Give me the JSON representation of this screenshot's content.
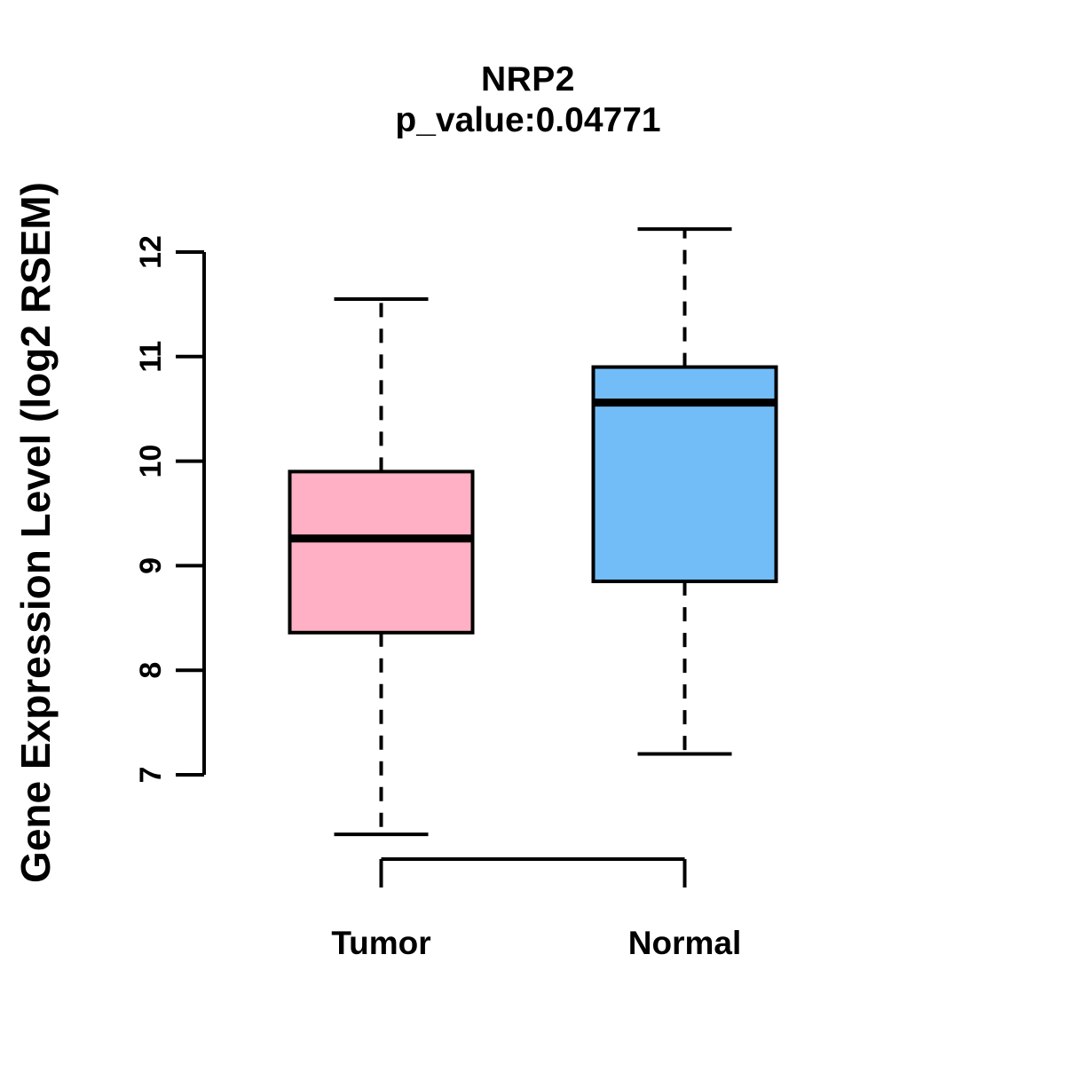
{
  "chart_data": {
    "type": "boxplot",
    "title": "NRP2",
    "subtitle": "p_value:0.04771",
    "ylabel": "Gene Expression Level (log2 RSEM)",
    "xlabel": "",
    "yticks": [
      7,
      8,
      9,
      10,
      11,
      12
    ],
    "axis_range": [
      7,
      12
    ],
    "categories": [
      "Tumor",
      "Normal"
    ],
    "series": [
      {
        "name": "Tumor",
        "color": "#FFB0C4",
        "lower_whisker": 6.43,
        "q1": 8.36,
        "median": 9.26,
        "q3": 9.9,
        "upper_whisker": 11.55
      },
      {
        "name": "Normal",
        "color": "#72BDF8",
        "lower_whisker": 7.2,
        "q1": 8.85,
        "median": 10.56,
        "q3": 10.9,
        "upper_whisker": 12.22
      }
    ],
    "colors": {
      "box_border": "#000000",
      "median": "#000000",
      "axis": "#000000",
      "text": "#000000",
      "background": "#FFFFFF"
    },
    "grid": false,
    "legend": "none",
    "notes": "whiskers drawn dashed; bottom bracket connects the two category positions"
  }
}
